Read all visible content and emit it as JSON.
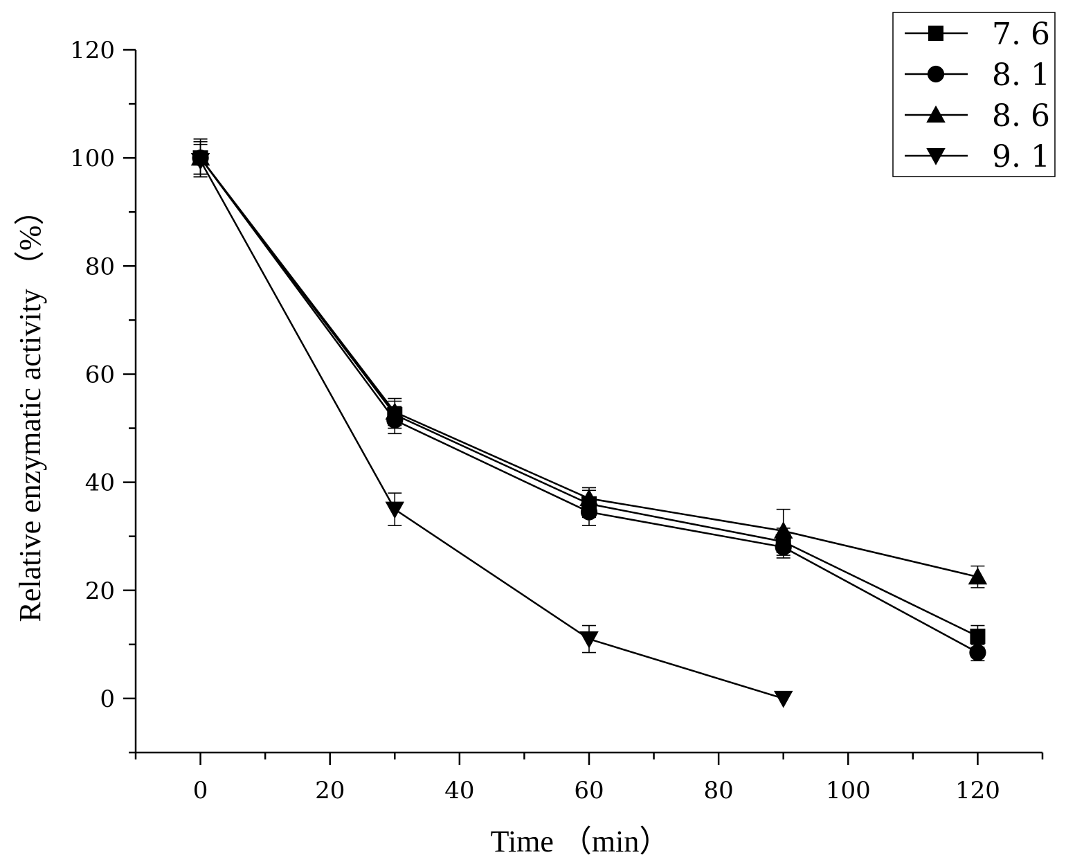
{
  "chart_data": {
    "type": "line",
    "title": "",
    "xlabel": "Time （min）",
    "ylabel": "Relative enzymatic activity （%）",
    "xlim": [
      -10,
      130
    ],
    "ylim": [
      -10,
      120
    ],
    "x_ticks": [
      0,
      20,
      40,
      60,
      80,
      100,
      120
    ],
    "y_ticks": [
      0,
      20,
      40,
      60,
      80,
      100,
      120
    ],
    "grid": false,
    "legend_position": "top-right",
    "series": [
      {
        "name": "7. 6",
        "marker": "square",
        "x": [
          0,
          30,
          60,
          90,
          120
        ],
        "values": [
          100,
          52.5,
          36,
          29,
          11.5
        ],
        "errors": [
          3,
          2.5,
          2.5,
          2.5,
          2
        ]
      },
      {
        "name": "8. 1",
        "marker": "circle",
        "x": [
          0,
          30,
          60,
          90,
          120
        ],
        "values": [
          100,
          51.5,
          34.5,
          28,
          8.5
        ],
        "errors": [
          3,
          2.5,
          2.5,
          2,
          1.5
        ]
      },
      {
        "name": "8. 6",
        "marker": "triangle-up",
        "x": [
          0,
          30,
          60,
          90,
          120
        ],
        "values": [
          100,
          53,
          37,
          31,
          22.5
        ],
        "errors": [
          3.5,
          2.5,
          2,
          4,
          2
        ]
      },
      {
        "name": "9. 1",
        "marker": "triangle-down",
        "x": [
          0,
          30,
          60,
          90
        ],
        "values": [
          99.5,
          35,
          11,
          0
        ],
        "errors": [
          3,
          3,
          2.5,
          0
        ]
      }
    ]
  }
}
